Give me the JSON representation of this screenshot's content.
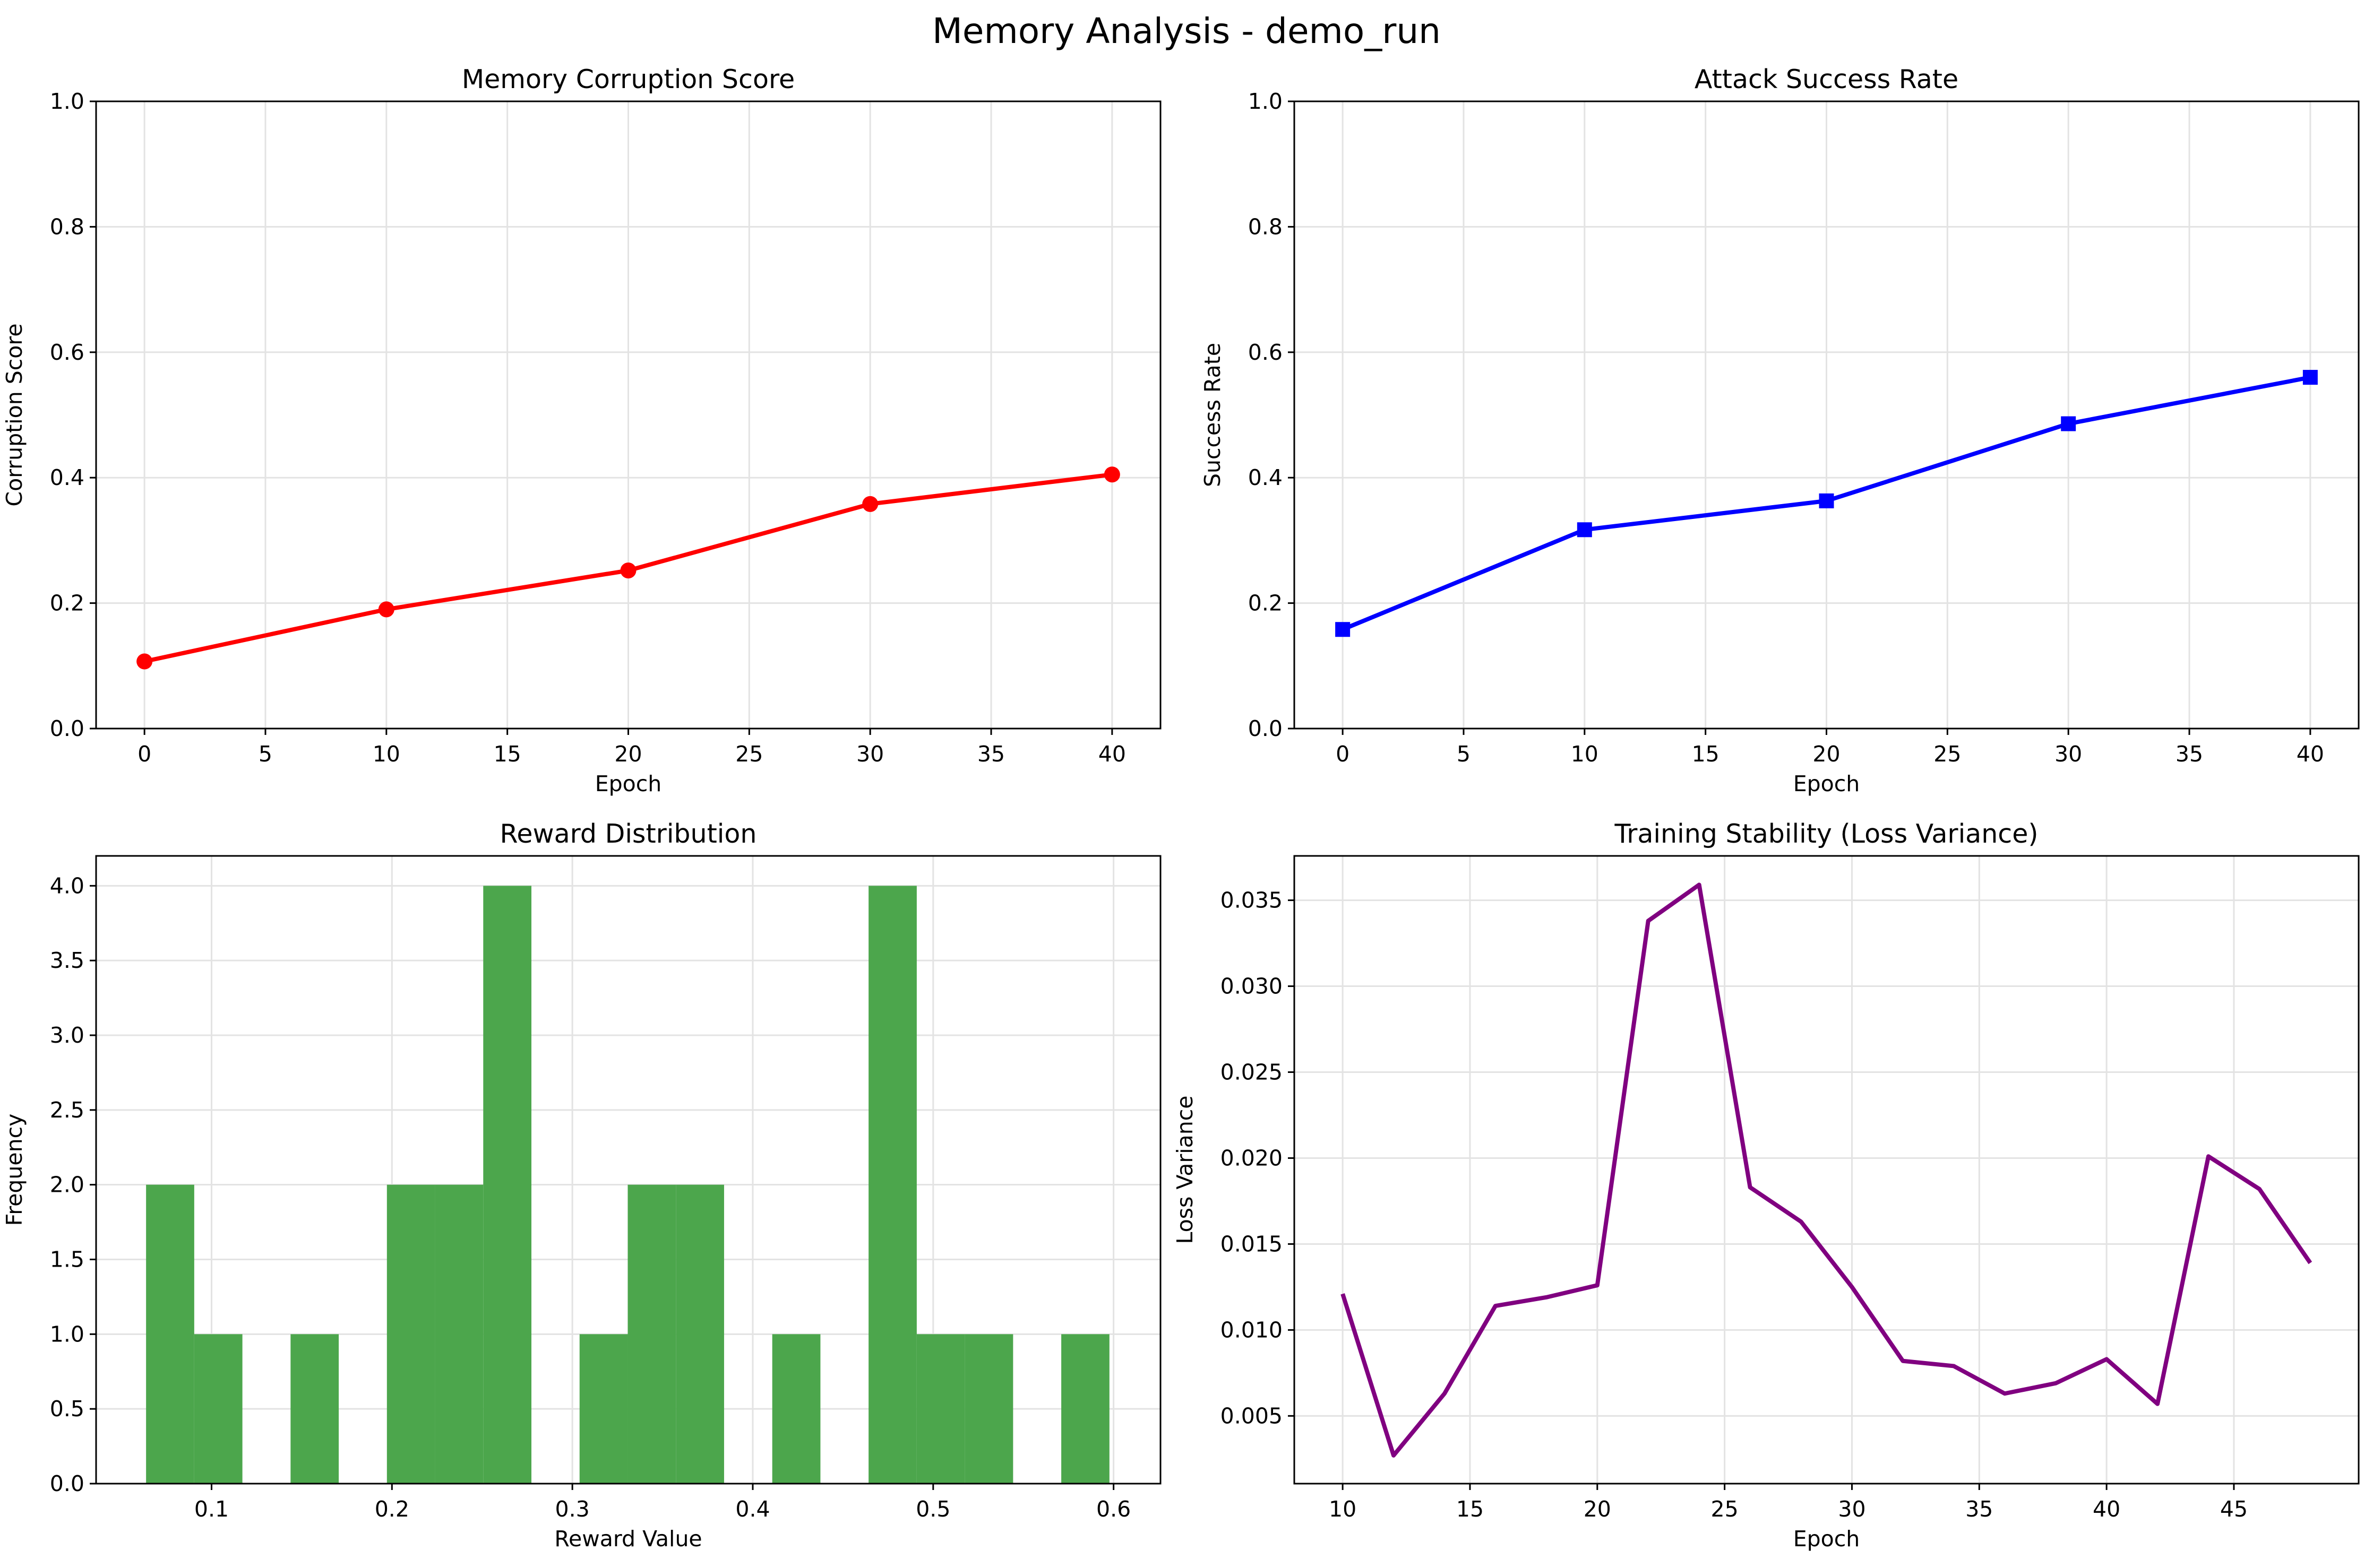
{
  "figure": {
    "title": "Memory Analysis - demo_run"
  },
  "chart_data": [
    {
      "type": "line",
      "title": "Memory Corruption Score",
      "xlabel": "Epoch",
      "ylabel": "Corruption Score",
      "xlim": [
        -2,
        42
      ],
      "ylim": [
        0,
        1
      ],
      "xticks": [
        0,
        5,
        10,
        15,
        20,
        25,
        30,
        35,
        40
      ],
      "xtick_labels": [
        "0",
        "5",
        "10",
        "15",
        "20",
        "25",
        "30",
        "35",
        "40"
      ],
      "yticks": [
        0,
        0.2,
        0.4,
        0.6,
        0.8,
        1.0
      ],
      "ytick_labels": [
        "0.0",
        "0.2",
        "0.4",
        "0.6",
        "0.8",
        "1.0"
      ],
      "grid": true,
      "series": [
        {
          "x": [
            0,
            10,
            20,
            30,
            40
          ],
          "values": [
            0.107,
            0.19,
            0.252,
            0.358,
            0.405
          ],
          "color": "#ff0000",
          "marker": "circle"
        }
      ]
    },
    {
      "type": "line",
      "title": "Attack Success Rate",
      "xlabel": "Epoch",
      "ylabel": "Success Rate",
      "xlim": [
        -2,
        42
      ],
      "ylim": [
        0,
        1
      ],
      "xticks": [
        0,
        5,
        10,
        15,
        20,
        25,
        30,
        35,
        40
      ],
      "xtick_labels": [
        "0",
        "5",
        "10",
        "15",
        "20",
        "25",
        "30",
        "35",
        "40"
      ],
      "yticks": [
        0,
        0.2,
        0.4,
        0.6,
        0.8,
        1.0
      ],
      "ytick_labels": [
        "0.0",
        "0.2",
        "0.4",
        "0.6",
        "0.8",
        "1.0"
      ],
      "grid": true,
      "series": [
        {
          "x": [
            0,
            10,
            20,
            30,
            40
          ],
          "values": [
            0.158,
            0.317,
            0.363,
            0.486,
            0.56
          ],
          "color": "#0000ff",
          "marker": "square"
        }
      ]
    },
    {
      "type": "bar",
      "subtype": "histogram",
      "title": "Reward Distribution",
      "xlabel": "Reward Value",
      "ylabel": "Frequency",
      "xlim": [
        0.036,
        0.626
      ],
      "ylim": [
        0,
        4.2
      ],
      "xticks": [
        0.1,
        0.2,
        0.3,
        0.4,
        0.5,
        0.6
      ],
      "xtick_labels": [
        "0.1",
        "0.2",
        "0.3",
        "0.4",
        "0.5",
        "0.6"
      ],
      "yticks": [
        0,
        0.5,
        1.0,
        1.5,
        2.0,
        2.5,
        3.0,
        3.5,
        4.0
      ],
      "ytick_labels": [
        "0.0",
        "0.5",
        "1.0",
        "1.5",
        "2.0",
        "2.5",
        "3.0",
        "3.5",
        "4.0"
      ],
      "grid": true,
      "color": "#4ca64c",
      "bin_edges": [
        0.0637,
        0.0904,
        0.1171,
        0.1438,
        0.1705,
        0.1972,
        0.2239,
        0.2506,
        0.2773,
        0.304,
        0.3307,
        0.3574,
        0.3841,
        0.4108,
        0.4375,
        0.4642,
        0.4909,
        0.5176,
        0.5443,
        0.571,
        0.5977
      ],
      "counts": [
        2,
        1,
        0,
        1,
        0,
        2,
        2,
        4,
        0,
        1,
        2,
        2,
        0,
        1,
        0,
        4,
        1,
        1,
        0,
        1
      ]
    },
    {
      "type": "line",
      "title": "Training Stability (Loss Variance)",
      "xlabel": "Epoch",
      "ylabel": "Loss Variance",
      "xlim": [
        8.1,
        49.9
      ],
      "ylim": [
        0.00106,
        0.03758
      ],
      "xticks": [
        10,
        15,
        20,
        25,
        30,
        35,
        40,
        45
      ],
      "xtick_labels": [
        "10",
        "15",
        "20",
        "25",
        "30",
        "35",
        "40",
        "45"
      ],
      "yticks": [
        0.005,
        0.01,
        0.015,
        0.02,
        0.025,
        0.03,
        0.035
      ],
      "ytick_labels": [
        "0.005",
        "0.010",
        "0.015",
        "0.020",
        "0.025",
        "0.030",
        "0.035"
      ],
      "grid": true,
      "series": [
        {
          "x": [
            10,
            12,
            14,
            16,
            18,
            20,
            22,
            24,
            26,
            28,
            30,
            32,
            34,
            36,
            38,
            40,
            42,
            44,
            46,
            48
          ],
          "values": [
            0.0121,
            0.0027,
            0.0063,
            0.0114,
            0.0119,
            0.0126,
            0.0338,
            0.0359,
            0.0183,
            0.0163,
            0.0125,
            0.0082,
            0.0079,
            0.0063,
            0.0069,
            0.0083,
            0.0057,
            0.0201,
            0.0182,
            0.0139
          ],
          "color": "#800080",
          "marker": "none"
        }
      ]
    }
  ]
}
